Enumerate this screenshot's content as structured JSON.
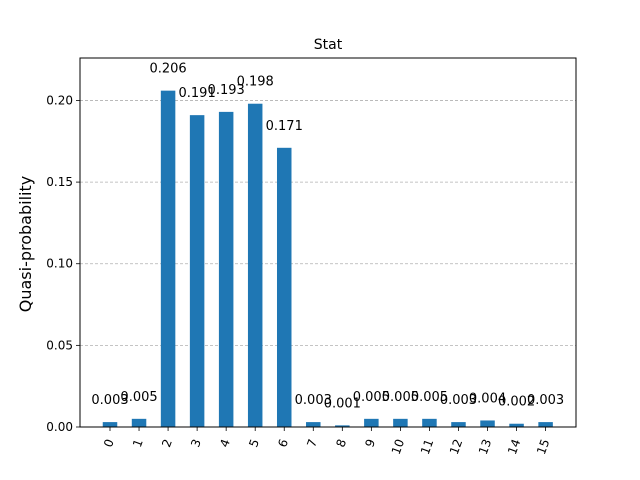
{
  "chart_data": {
    "type": "bar",
    "title": "Stat",
    "xlabel": "",
    "ylabel": "Quasi-probability",
    "ylim": [
      0,
      0.226
    ],
    "yticks": [
      "0.00",
      "0.05",
      "0.10",
      "0.15",
      "0.20"
    ],
    "grid": "horizontal-dashed",
    "color": "#1f77b4",
    "categories": [
      "0",
      "1",
      "2",
      "3",
      "4",
      "5",
      "6",
      "7",
      "8",
      "9",
      "10",
      "11",
      "12",
      "13",
      "14",
      "15"
    ],
    "values": [
      0.003,
      0.005,
      0.206,
      0.191,
      0.193,
      0.198,
      0.171,
      0.003,
      0.001,
      0.005,
      0.005,
      0.005,
      0.003,
      0.004,
      0.002,
      0.003
    ],
    "value_labels": [
      "0.003",
      "0.005",
      "0.206",
      "0.191",
      "0.193",
      "0.198",
      "0.171",
      "0.003",
      "0.001",
      "0.005",
      "0.005",
      "0.005",
      "0.003",
      "0.004",
      "0.002",
      "0.003"
    ]
  }
}
